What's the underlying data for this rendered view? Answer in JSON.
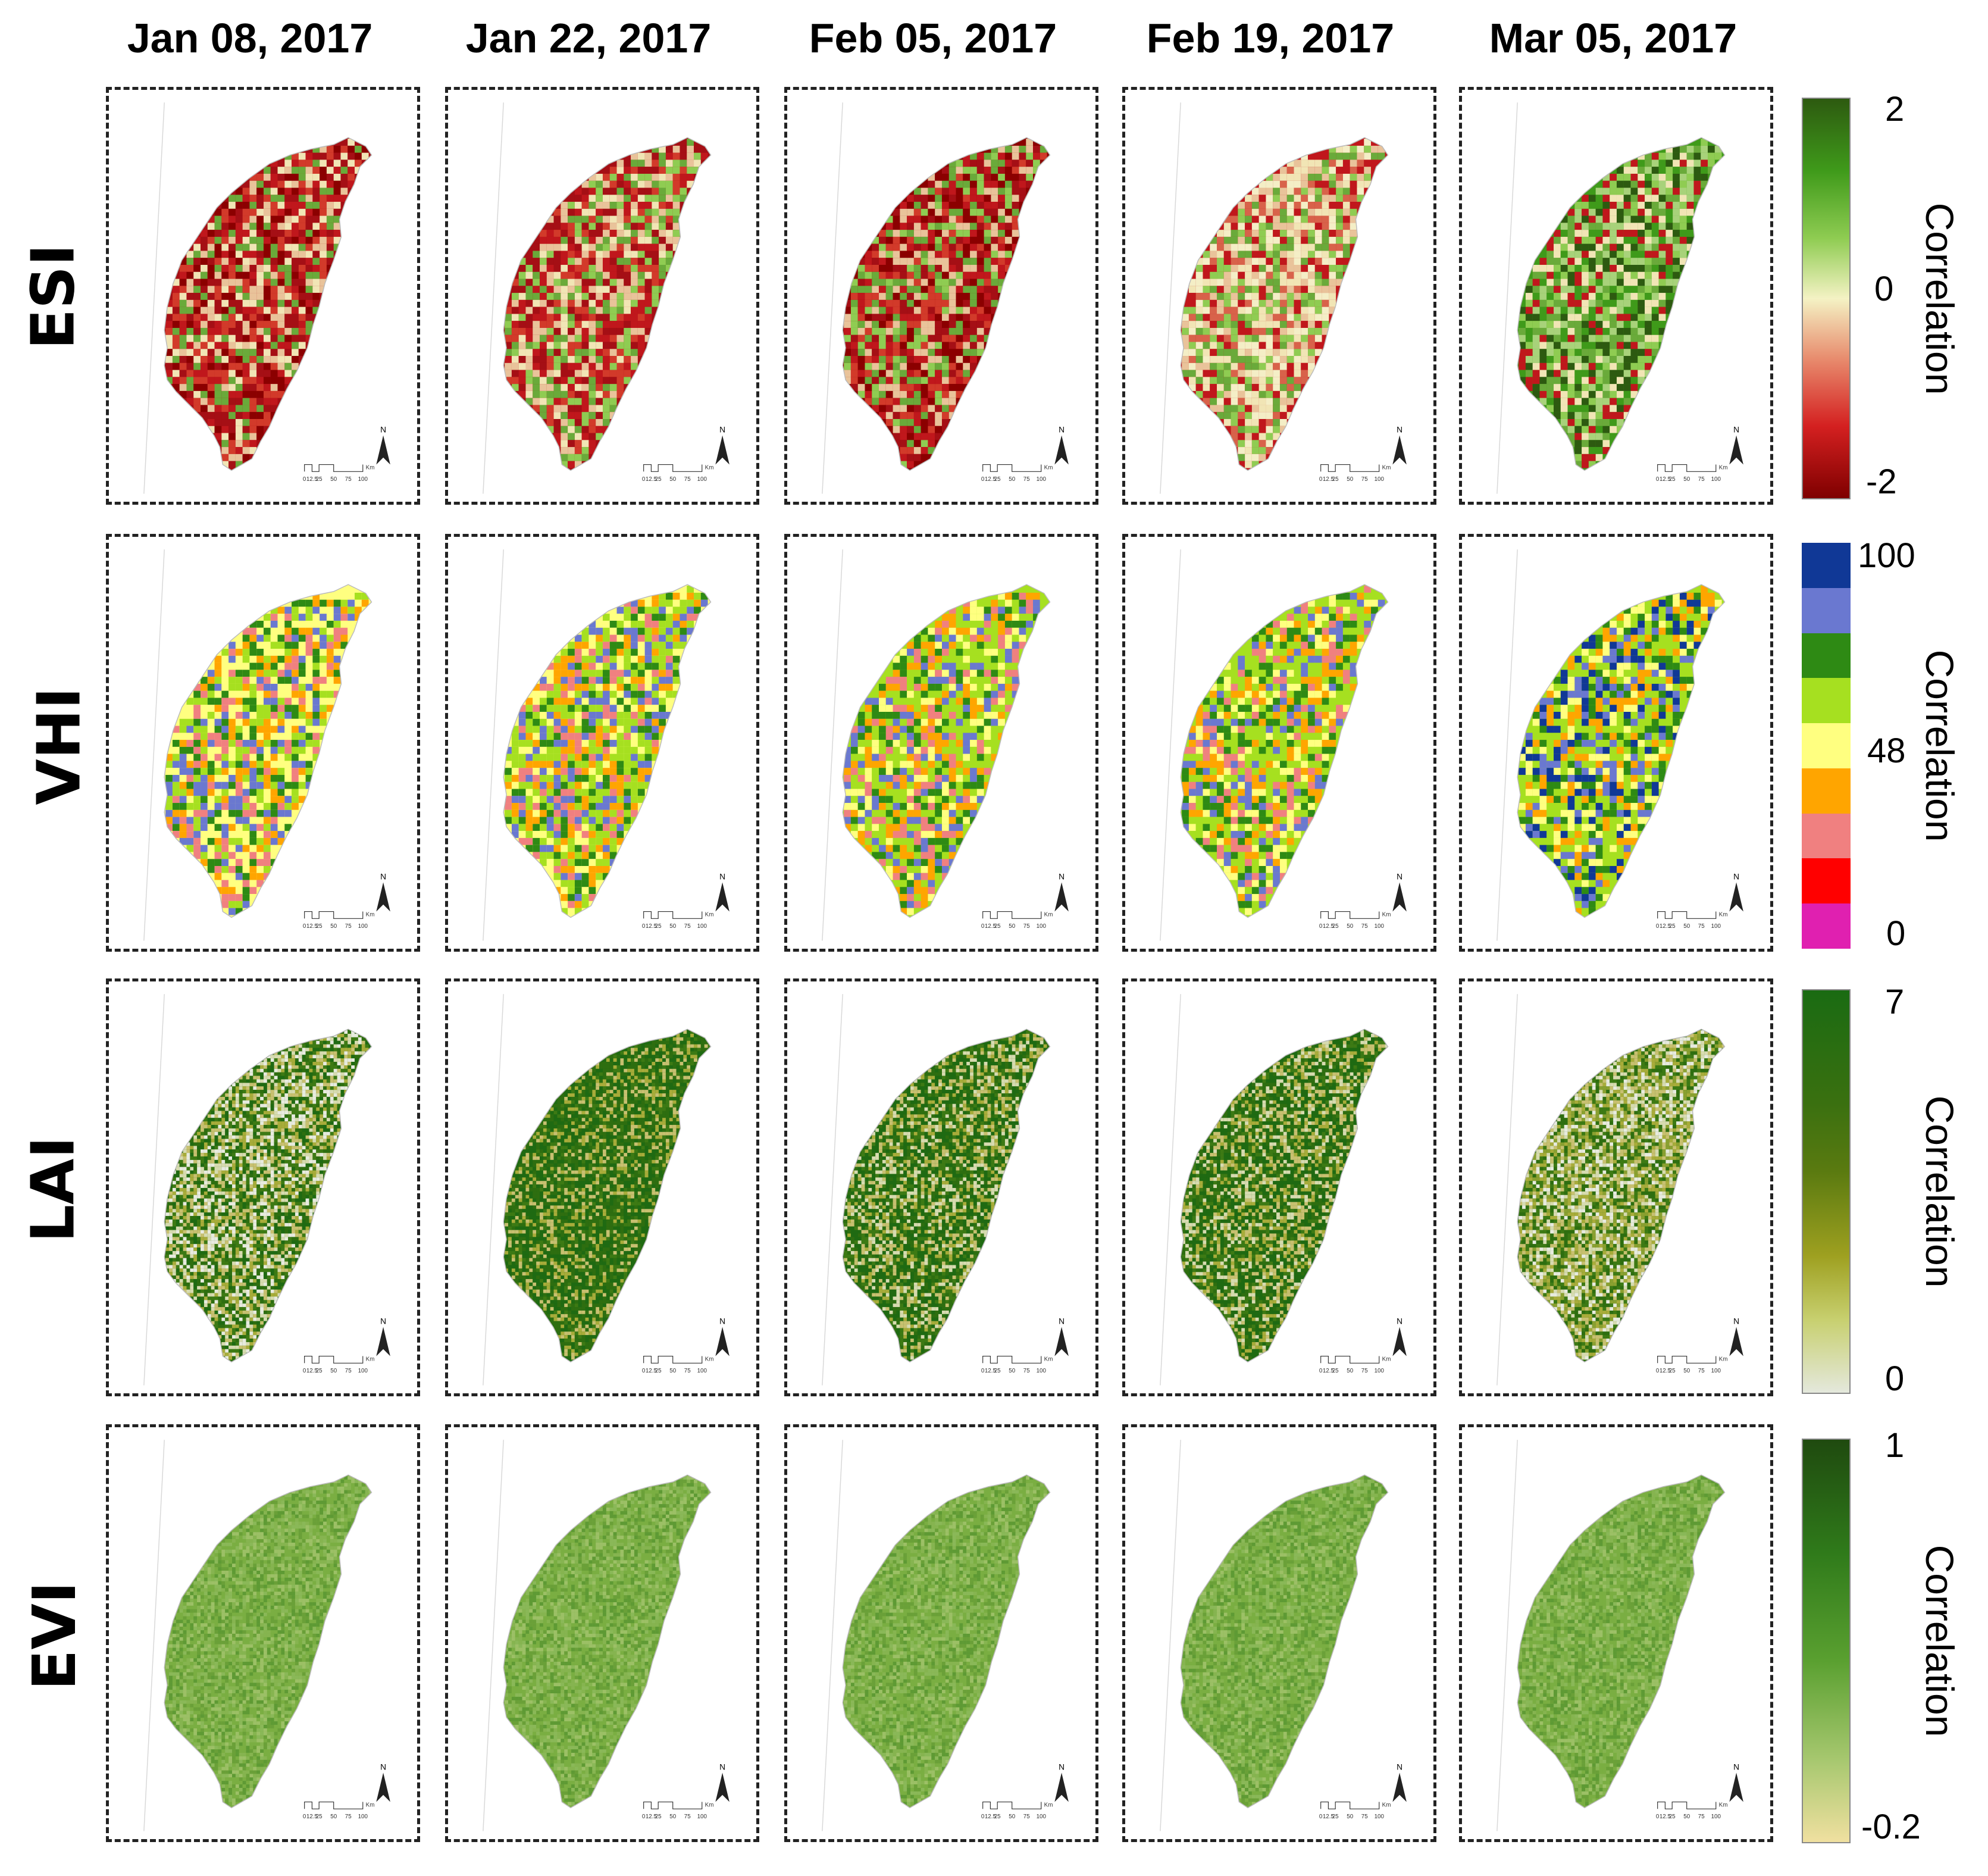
{
  "dates": [
    "Jan 08, 2017",
    "Jan 22, 2017",
    "Feb 05, 2017",
    "Feb 19, 2017",
    "Mar 05, 2017"
  ],
  "indices": [
    {
      "name": "ESI",
      "colorbar_title": "Correlation",
      "ticks": [
        "2",
        "0",
        "-2"
      ],
      "colorbar_type": "continuous",
      "colors": [
        "#2d5a10",
        "#3f9a1a",
        "#8fcc52",
        "#f4f2c4",
        "#e88c6e",
        "#d42020",
        "#7f0000"
      ],
      "panel_palettes": [
        [
          "#a50f15",
          "#c0171c",
          "#d23a2a",
          "#8b0000",
          "#e9c39a",
          "#f1e5b5",
          "#6aaa3a"
        ],
        [
          "#a50f15",
          "#c0171c",
          "#d23a2a",
          "#e9c39a",
          "#f1e5b5",
          "#6aaa3a",
          "#8fcc52"
        ],
        [
          "#8b0000",
          "#a50f15",
          "#c0171c",
          "#d23a2a",
          "#e9c39a",
          "#6aaa3a",
          "#8fcc52"
        ],
        [
          "#c0171c",
          "#d8624a",
          "#e9c39a",
          "#f4eec6",
          "#f1e5b5",
          "#8fcc52",
          "#6aaa3a"
        ],
        [
          "#3f9a1a",
          "#6aaa3a",
          "#8fcc52",
          "#2d5a10",
          "#f1e5b5",
          "#c0171c",
          "#a8d27a"
        ]
      ]
    },
    {
      "name": "VHI",
      "colorbar_title": "Correlation",
      "ticks": [
        "100",
        "48",
        "0"
      ],
      "colorbar_type": "discrete",
      "colors": [
        "#103896",
        "#6a78d0",
        "#2e8a14",
        "#a6e020",
        "#ffff80",
        "#ffa500",
        "#f08080",
        "#ff0000",
        "#e020b0"
      ],
      "panel_palettes": [
        [
          "#ffff80",
          "#a6e020",
          "#ffff80",
          "#ffa500",
          "#f08080",
          "#2e8a14",
          "#6a78d0"
        ],
        [
          "#ffff80",
          "#a6e020",
          "#a6e020",
          "#ffa500",
          "#f08080",
          "#2e8a14",
          "#6a78d0"
        ],
        [
          "#a6e020",
          "#ffff80",
          "#a6e020",
          "#ffa500",
          "#2e8a14",
          "#f08080",
          "#6a78d0"
        ],
        [
          "#a6e020",
          "#2e8a14",
          "#ffff80",
          "#ffa500",
          "#a6e020",
          "#6a78d0",
          "#f08080"
        ],
        [
          "#a6e020",
          "#ffff80",
          "#2e8a14",
          "#6a78d0",
          "#a6e020",
          "#ffa500",
          "#103896"
        ]
      ]
    },
    {
      "name": "LAI",
      "colorbar_title": "Correlation",
      "ticks": [
        "7",
        "0"
      ],
      "colorbar_type": "continuous",
      "colors": [
        "#1a6b12",
        "#5a7a10",
        "#9ea020",
        "#c8d070",
        "#e4e8dc"
      ],
      "panel_palettes": [
        [
          "#2e6e10",
          "#3d7a14",
          "#a8ac3a",
          "#d7dbb0",
          "#1f6a12",
          "#c8c070",
          "#e8ebdf"
        ],
        [
          "#1f6a12",
          "#2e6e10",
          "#2e6e10",
          "#a8ac3a",
          "#1f6a12",
          "#c8c070",
          "#3d7a14"
        ],
        [
          "#1f6a12",
          "#2e6e10",
          "#a8ac3a",
          "#d7dbb0",
          "#1f6a12",
          "#c8c070",
          "#3d7a14"
        ],
        [
          "#1f6a12",
          "#2e6e10",
          "#a8ac3a",
          "#d7dbb0",
          "#1f6a12",
          "#c8c070",
          "#3d7a14"
        ],
        [
          "#2e6e10",
          "#3d7a14",
          "#a8ac3a",
          "#d7dbb0",
          "#8aa030",
          "#c8c070",
          "#e8ebdf"
        ]
      ]
    },
    {
      "name": "EVI",
      "colorbar_title": "Correlation",
      "ticks": [
        "1",
        "-0.2"
      ],
      "colorbar_type": "continuous",
      "colors": [
        "#1f4a0f",
        "#2f7a1a",
        "#5aa030",
        "#a8c870",
        "#f0e0a0"
      ],
      "panel_palettes": [
        [
          "#7aae42",
          "#6aa038",
          "#8ab858",
          "#5e9a34",
          "#9cc066",
          "#7aae42",
          "#86b450"
        ],
        [
          "#7aae42",
          "#6aa038",
          "#8ab858",
          "#5e9a34",
          "#9cc066",
          "#7aae42",
          "#86b450"
        ],
        [
          "#7aae42",
          "#6aa038",
          "#8ab858",
          "#5e9a34",
          "#9cc066",
          "#7aae42",
          "#86b450"
        ],
        [
          "#7aae42",
          "#6aa038",
          "#8ab858",
          "#5e9a34",
          "#9cc066",
          "#7aae42",
          "#86b450"
        ],
        [
          "#7aae42",
          "#6aa038",
          "#8ab858",
          "#5e9a34",
          "#9cc066",
          "#7aae42",
          "#86b450"
        ]
      ]
    }
  ],
  "scale_bar": {
    "labels": [
      "0",
      "12.5",
      "25",
      "50",
      "75",
      "100"
    ],
    "unit": "Km"
  },
  "north_arrow_label": "N"
}
